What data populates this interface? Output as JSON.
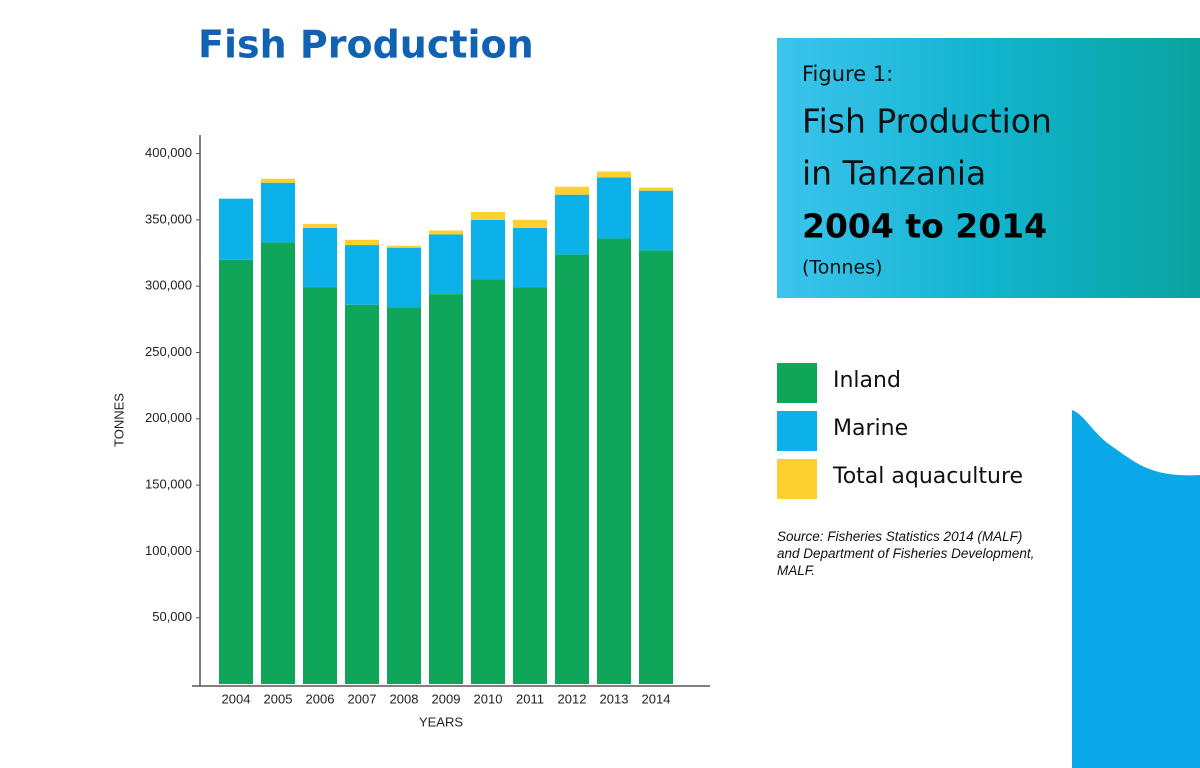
{
  "chart_data": {
    "type": "stacked_bar",
    "title": "Fish Production",
    "annotations": [
      "Figure 1:",
      "Fish Production",
      "in Tanzania",
      "2004 to 2014",
      "(Tonnes)"
    ],
    "source": "Source: Fisheries Statistics 2014 (MALF) and Department of Fisheries Development, MALF.",
    "y_label": "TONNES",
    "x_label": "YEARS",
    "categories": [
      "2004",
      "2005",
      "2006",
      "2007",
      "2008",
      "2009",
      "2010",
      "2011",
      "2012",
      "2013",
      "2014"
    ],
    "series": [
      {
        "name": "Inland",
        "color": "#0fa65a",
        "values": [
          320000,
          333000,
          299000,
          286000,
          284000,
          294000,
          305000,
          299000,
          324000,
          336000,
          327000
        ]
      },
      {
        "name": "Marine",
        "color": "#0db1e9",
        "values": [
          46000,
          45000,
          45000,
          45000,
          45000,
          45000,
          45000,
          45000,
          45000,
          46000,
          45000
        ]
      },
      {
        "name": "Total aquaculture",
        "color": "#fdd02f",
        "values": [
          0,
          3000,
          3000,
          4000,
          1500,
          3000,
          6000,
          6000,
          6000,
          4500,
          2300
        ]
      }
    ],
    "ylim": [
      0,
      414000
    ],
    "yticks": [
      {
        "value": 50000,
        "label": "50,000"
      },
      {
        "value": 100000,
        "label": "100,000"
      },
      {
        "value": 150000,
        "label": "150,000"
      },
      {
        "value": 200000,
        "label": "200,000"
      },
      {
        "value": 250000,
        "label": "250,000"
      },
      {
        "value": 300000,
        "label": "300,000"
      },
      {
        "value": 350000,
        "label": "350,000"
      },
      {
        "value": 400000,
        "label": "400,000"
      }
    ]
  }
}
